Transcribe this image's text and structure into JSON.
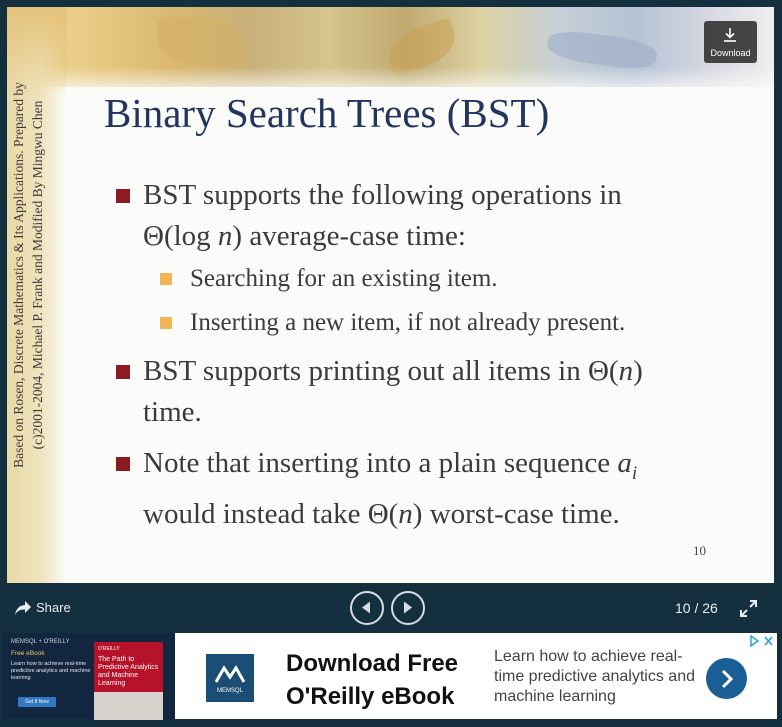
{
  "slide": {
    "title": "Binary Search Trees (BST)",
    "side_text_line1": "Based on Rosen, Discrete Mathematics & Its Applications. Prepared by",
    "side_text_line2": "(c)2001-2004, Michael P. Frank and Modified By Mingwu Chen",
    "bullet1": {
      "line1": "BST supports the following operations in",
      "line2_pre": "Θ(log ",
      "line2_var": "n",
      "line2_post": ") average-case time:"
    },
    "subbullets": [
      "Searching for an existing item.",
      "Inserting a new item, if not already present."
    ],
    "bullet2": {
      "line1_pre": "BST supports printing out all items in Θ(",
      "line1_var": "n",
      "line1_post": ")",
      "line2": "time."
    },
    "bullet3": {
      "line1_pre": "Note that inserting into a plain sequence ",
      "line1_var": "a",
      "line1_sub": "i",
      "line2_pre": "would instead take Θ(",
      "line2_var": "n",
      "line2_post": ") worst-case time."
    },
    "page_number": "10",
    "colors": {
      "title": "#23345f",
      "bullet_marker": "#8e1b22",
      "subbullet_marker": "#f3b655"
    }
  },
  "download": {
    "label": "Download",
    "icon": "download-icon"
  },
  "controls": {
    "share_label": "Share",
    "share_icon": "share-arrow-icon",
    "prev_icon": "previous-icon",
    "next_icon": "next-icon",
    "page_counter": "10 / 26",
    "fullscreen_icon": "fullscreen-icon"
  },
  "ad": {
    "book_brand": "MEMSQL + O'REILLY",
    "book_free": "Free eBook",
    "book_desc": "Learn how to achieve real-time predictive analytics and machine learning",
    "book_button": "Get It Now",
    "cover_brand": "O'REILLY",
    "cover_title": "The Path to Predictive Analytics and Machine Learning",
    "logo_text": "MEMSQL",
    "headline": "Download Free O'Reilly eBook",
    "body": "Learn how to achieve real-time predictive analytics and machine learning",
    "cta_icon": "chevron-right-icon",
    "adchoices_icon": "adchoices-icon"
  }
}
